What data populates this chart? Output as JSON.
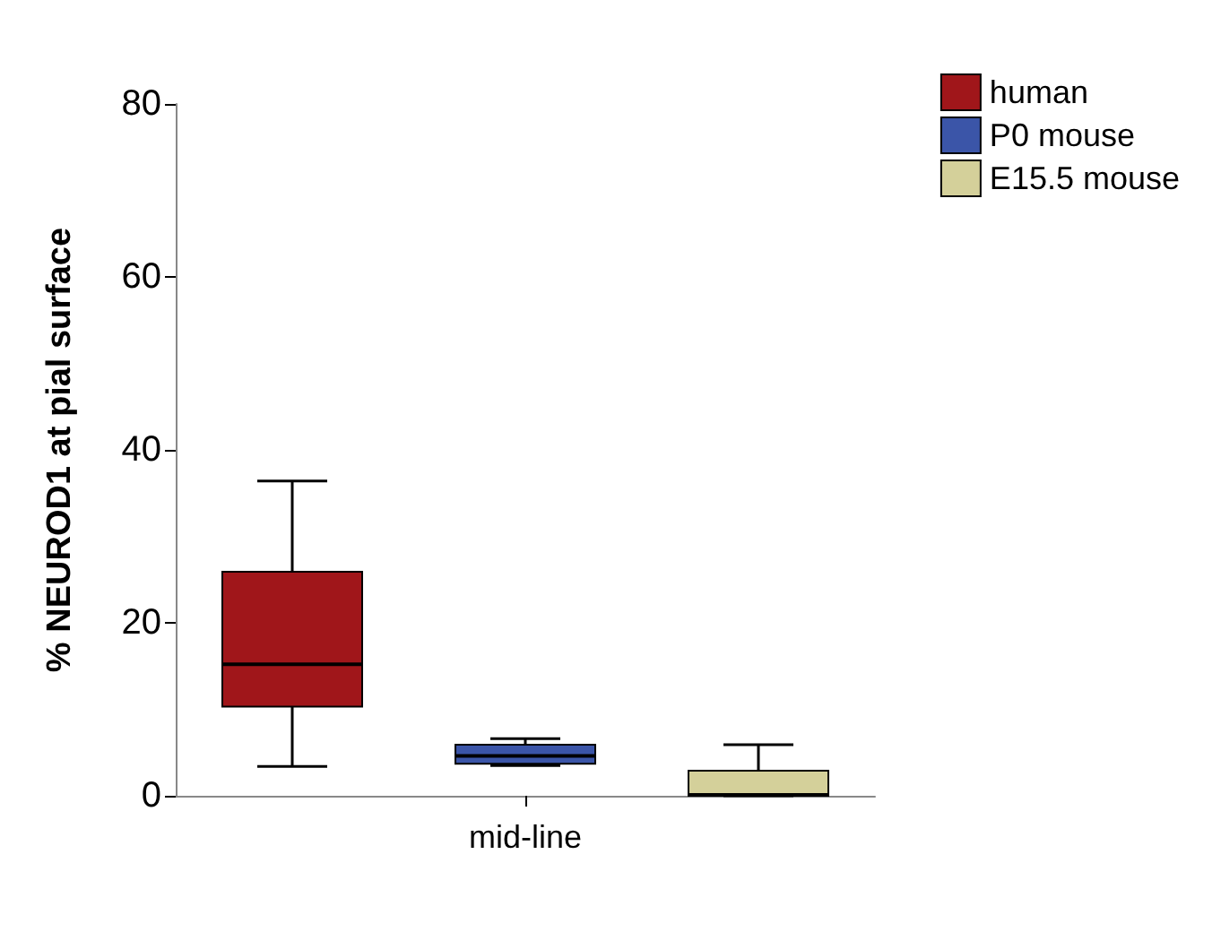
{
  "chart_data": {
    "type": "box",
    "ylabel": "% NEUROD1 at pial surface",
    "categories": [
      null,
      "mid-line",
      null
    ],
    "ylim": [
      0,
      80
    ],
    "yticks": [
      0,
      20,
      40,
      60,
      80
    ],
    "grid": false,
    "legend": "top right",
    "series": [
      {
        "name": "human",
        "color": "#a0161a",
        "boxes": [
          {
            "low": 3.4,
            "q1": 10.3,
            "median": 15.2,
            "q3": 25.9,
            "high": 36.4
          },
          null,
          null
        ]
      },
      {
        "name": "P0 mouse",
        "color": "#3b55a8",
        "boxes": [
          null,
          {
            "low": 3.5,
            "q1": 3.7,
            "median": 4.6,
            "q3": 5.9,
            "high": 6.6
          },
          null
        ]
      },
      {
        "name": "E15.5 mouse",
        "color": "#d4d09a",
        "boxes": [
          null,
          null,
          {
            "low": 0,
            "q1": 0,
            "median": 0.1,
            "q3": 2.9,
            "high": 5.9
          }
        ]
      }
    ]
  }
}
